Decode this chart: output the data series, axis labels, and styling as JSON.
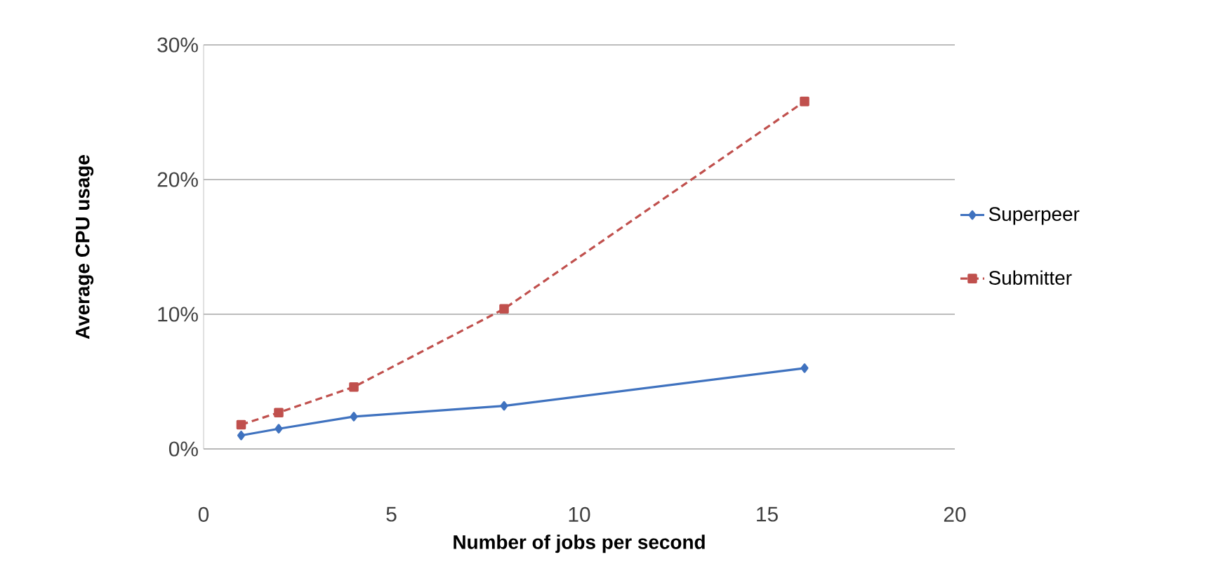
{
  "chart_data": {
    "type": "line",
    "xlabel": "Number of jobs per second",
    "ylabel": "Average CPU usage",
    "xlim": [
      0,
      20
    ],
    "xticks": [
      0,
      5,
      10,
      15,
      20
    ],
    "ylim": [
      0,
      30
    ],
    "yticks": [
      {
        "value": 0,
        "label": "0%"
      },
      {
        "value": 10,
        "label": "10%"
      },
      {
        "value": 20,
        "label": "20%"
      },
      {
        "value": 30,
        "label": "30%"
      }
    ],
    "grid": "y",
    "legend": "right",
    "x": [
      1,
      2,
      4,
      8,
      16
    ],
    "series": [
      {
        "name": "Superpeer",
        "color": "#3f72bf",
        "values": [
          1.0,
          1.5,
          2.4,
          3.2,
          6.0
        ],
        "marker": "diamond",
        "line_style": "solid"
      },
      {
        "name": "Submitter",
        "color": "#c0504d",
        "values": [
          1.8,
          2.7,
          4.6,
          10.4,
          25.8
        ],
        "marker": "square",
        "line_style": "dashed"
      }
    ]
  }
}
